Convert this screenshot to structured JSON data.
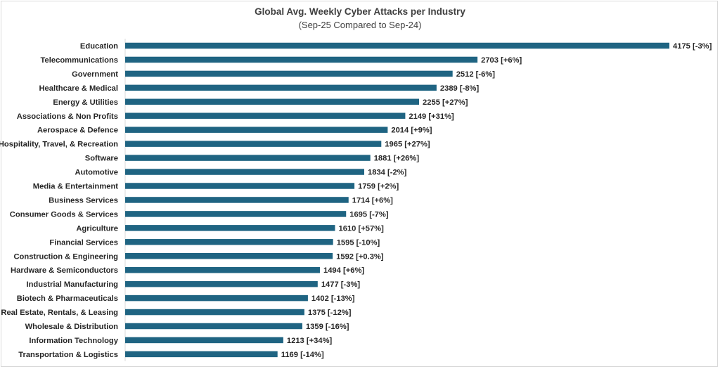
{
  "chart_data": {
    "type": "bar",
    "orientation": "horizontal",
    "title": "Global Avg. Weekly Cyber Attacks per Industry",
    "subtitle": "(Sep-25 Compared to Sep-24)",
    "bar_color": "#1f6482",
    "categories": [
      "Education",
      "Telecommunications",
      "Government",
      "Healthcare & Medical",
      "Energy & Utilities",
      "Associations & Non Profits",
      "Aerospace & Defence",
      "Hospitality, Travel, & Recreation",
      "Software",
      "Automotive",
      "Media & Entertainment",
      "Business Services",
      "Consumer Goods & Services",
      "Agriculture",
      "Financial Services",
      "Construction & Engineering",
      "Hardware & Semiconductors",
      "Industrial Manufacturing",
      "Biotech & Pharmaceuticals",
      "Real Estate, Rentals, & Leasing",
      "Wholesale & Distribution",
      "Information Technology",
      "Transportation & Logistics"
    ],
    "values": [
      4175,
      2703,
      2512,
      2389,
      2255,
      2149,
      2014,
      1965,
      1881,
      1834,
      1759,
      1714,
      1695,
      1610,
      1595,
      1592,
      1494,
      1477,
      1402,
      1375,
      1359,
      1213,
      1169
    ],
    "changes": [
      "-3%",
      "+6%",
      "-6%",
      "-8%",
      "+27%",
      "+31%",
      "+9%",
      "+27%",
      "+26%",
      "-2%",
      "+2%",
      "+6%",
      "-7%",
      "+57%",
      "-10%",
      "+0.3%",
      "+6%",
      "-3%",
      "-13%",
      "-12%",
      "-16%",
      "+34%",
      "-14%"
    ],
    "data_labels": [
      "4175 [-3%]",
      "2703 [+6%]",
      "2512 [-6%]",
      "2389 [-8%]",
      "2255 [+27%]",
      "2149 [+31%]",
      "2014 [+9%]",
      "1965 [+27%]",
      "1881 [+26%]",
      "1834 [-2%]",
      "1759 [+2%]",
      "1714 [+6%]",
      "1695 [-7%]",
      "1610 [+57%]",
      "1595 [-10%]",
      "1592 [+0.3%]",
      "1494 [+6%]",
      "1477 [-3%]",
      "1402 [-13%]",
      "1375 [-12%]",
      "1359 [-16%]",
      "1213 [+34%]",
      "1169 [-14%]"
    ],
    "xlim": [
      0,
      4175
    ],
    "grid": false,
    "legend": "none"
  }
}
